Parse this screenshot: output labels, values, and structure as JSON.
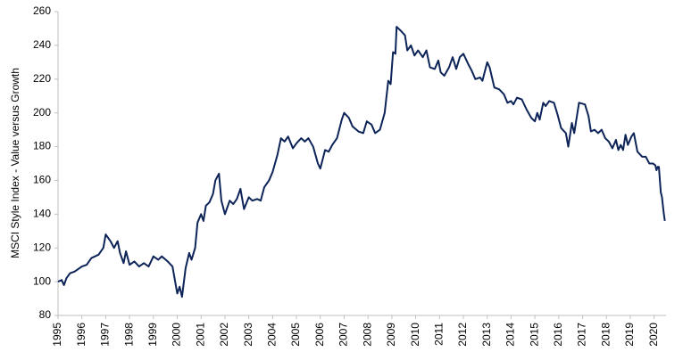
{
  "chart_data": {
    "type": "line",
    "y_label": "MSCI Style Index - Value versus Growth",
    "xlim": [
      1995,
      2020.5
    ],
    "xticks": [
      1995,
      1996,
      1997,
      1998,
      1999,
      2000,
      2001,
      2002,
      2003,
      2004,
      2005,
      2006,
      2007,
      2008,
      2009,
      2010,
      2011,
      2012,
      2013,
      2014,
      2015,
      2016,
      2017,
      2018,
      2019,
      2020
    ],
    "ylim": [
      80,
      260
    ],
    "yticks": [
      80,
      100,
      120,
      140,
      160,
      180,
      200,
      220,
      240,
      260
    ],
    "grid": false,
    "series": [
      {
        "color": "#0d2458",
        "x": [
          1995.0,
          1995.15,
          1995.25,
          1995.35,
          1995.5,
          1995.7,
          1996.0,
          1996.2,
          1996.4,
          1996.7,
          1996.9,
          1997.0,
          1997.2,
          1997.35,
          1997.5,
          1997.6,
          1997.75,
          1997.85,
          1998.0,
          1998.2,
          1998.4,
          1998.6,
          1998.8,
          1999.0,
          1999.2,
          1999.35,
          1999.6,
          1999.8,
          2000.0,
          2000.1,
          2000.2,
          2000.35,
          2000.5,
          2000.6,
          2000.75,
          2000.85,
          2001.0,
          2001.1,
          2001.2,
          2001.35,
          2001.5,
          2001.6,
          2001.75,
          2001.85,
          2002.0,
          2002.2,
          2002.35,
          2002.5,
          2002.65,
          2002.8,
          2003.0,
          2003.15,
          2003.35,
          2003.5,
          2003.65,
          2003.85,
          2004.0,
          2004.2,
          2004.35,
          2004.5,
          2004.65,
          2004.85,
          2005.0,
          2005.2,
          2005.35,
          2005.5,
          2005.7,
          2005.9,
          2006.0,
          2006.2,
          2006.35,
          2006.5,
          2006.7,
          2006.9,
          2007.0,
          2007.2,
          2007.35,
          2007.6,
          2007.8,
          2007.95,
          2008.15,
          2008.3,
          2008.5,
          2008.7,
          2008.85,
          2008.95,
          2009.05,
          2009.15,
          2009.2,
          2009.35,
          2009.55,
          2009.65,
          2009.8,
          2009.95,
          2010.1,
          2010.3,
          2010.45,
          2010.6,
          2010.8,
          2010.95,
          2011.05,
          2011.2,
          2011.4,
          2011.55,
          2011.7,
          2011.85,
          2012.0,
          2012.2,
          2012.35,
          2012.5,
          2012.7,
          2012.8,
          2013.0,
          2013.1,
          2013.3,
          2013.5,
          2013.7,
          2013.85,
          2014.0,
          2014.1,
          2014.25,
          2014.45,
          2014.65,
          2014.85,
          2015.0,
          2015.1,
          2015.2,
          2015.35,
          2015.45,
          2015.6,
          2015.8,
          2015.95,
          2016.1,
          2016.3,
          2016.4,
          2016.55,
          2016.65,
          2016.85,
          2017.1,
          2017.25,
          2017.35,
          2017.5,
          2017.65,
          2017.8,
          2017.95,
          2018.1,
          2018.25,
          2018.4,
          2018.5,
          2018.6,
          2018.7,
          2018.8,
          2018.9,
          2019.05,
          2019.15,
          2019.3,
          2019.5,
          2019.65,
          2019.8,
          2019.95,
          2020.05,
          2020.1,
          2020.15,
          2020.2,
          2020.28,
          2020.33,
          2020.4,
          2020.45
        ],
        "values": [
          100,
          101,
          98,
          102,
          105,
          106,
          109,
          110,
          114,
          116,
          120,
          128,
          124,
          120,
          124,
          117,
          111,
          118,
          110,
          112,
          109,
          111,
          109,
          115,
          113,
          115,
          112,
          109,
          93,
          97,
          91,
          108,
          117,
          113,
          120,
          135,
          140,
          136,
          145,
          147,
          152,
          160,
          164,
          148,
          140,
          148,
          146,
          149,
          155,
          143,
          150,
          148,
          149,
          148,
          156,
          160,
          165,
          175,
          185,
          183,
          186,
          179,
          182,
          185,
          183,
          185,
          180,
          170,
          167,
          178,
          177,
          181,
          185,
          196,
          200,
          197,
          192,
          189,
          188,
          195,
          193,
          188,
          190,
          200,
          219,
          217,
          236,
          235,
          251,
          249,
          246,
          237,
          240,
          234,
          237,
          233,
          237,
          227,
          226,
          231,
          224,
          222,
          227,
          233,
          226,
          233,
          235,
          229,
          225,
          220,
          221,
          219,
          230,
          227,
          215,
          214,
          211,
          206,
          207,
          205,
          209,
          208,
          202,
          197,
          195,
          200,
          196,
          206,
          204,
          207,
          206,
          199,
          191,
          188,
          180,
          194,
          188,
          206,
          205,
          198,
          189,
          190,
          188,
          190,
          185,
          183,
          179,
          184,
          178,
          181,
          178,
          187,
          181,
          186,
          188,
          177,
          174,
          174,
          170,
          170,
          169,
          166,
          168,
          168,
          153,
          150,
          141,
          136
        ]
      }
    ]
  }
}
